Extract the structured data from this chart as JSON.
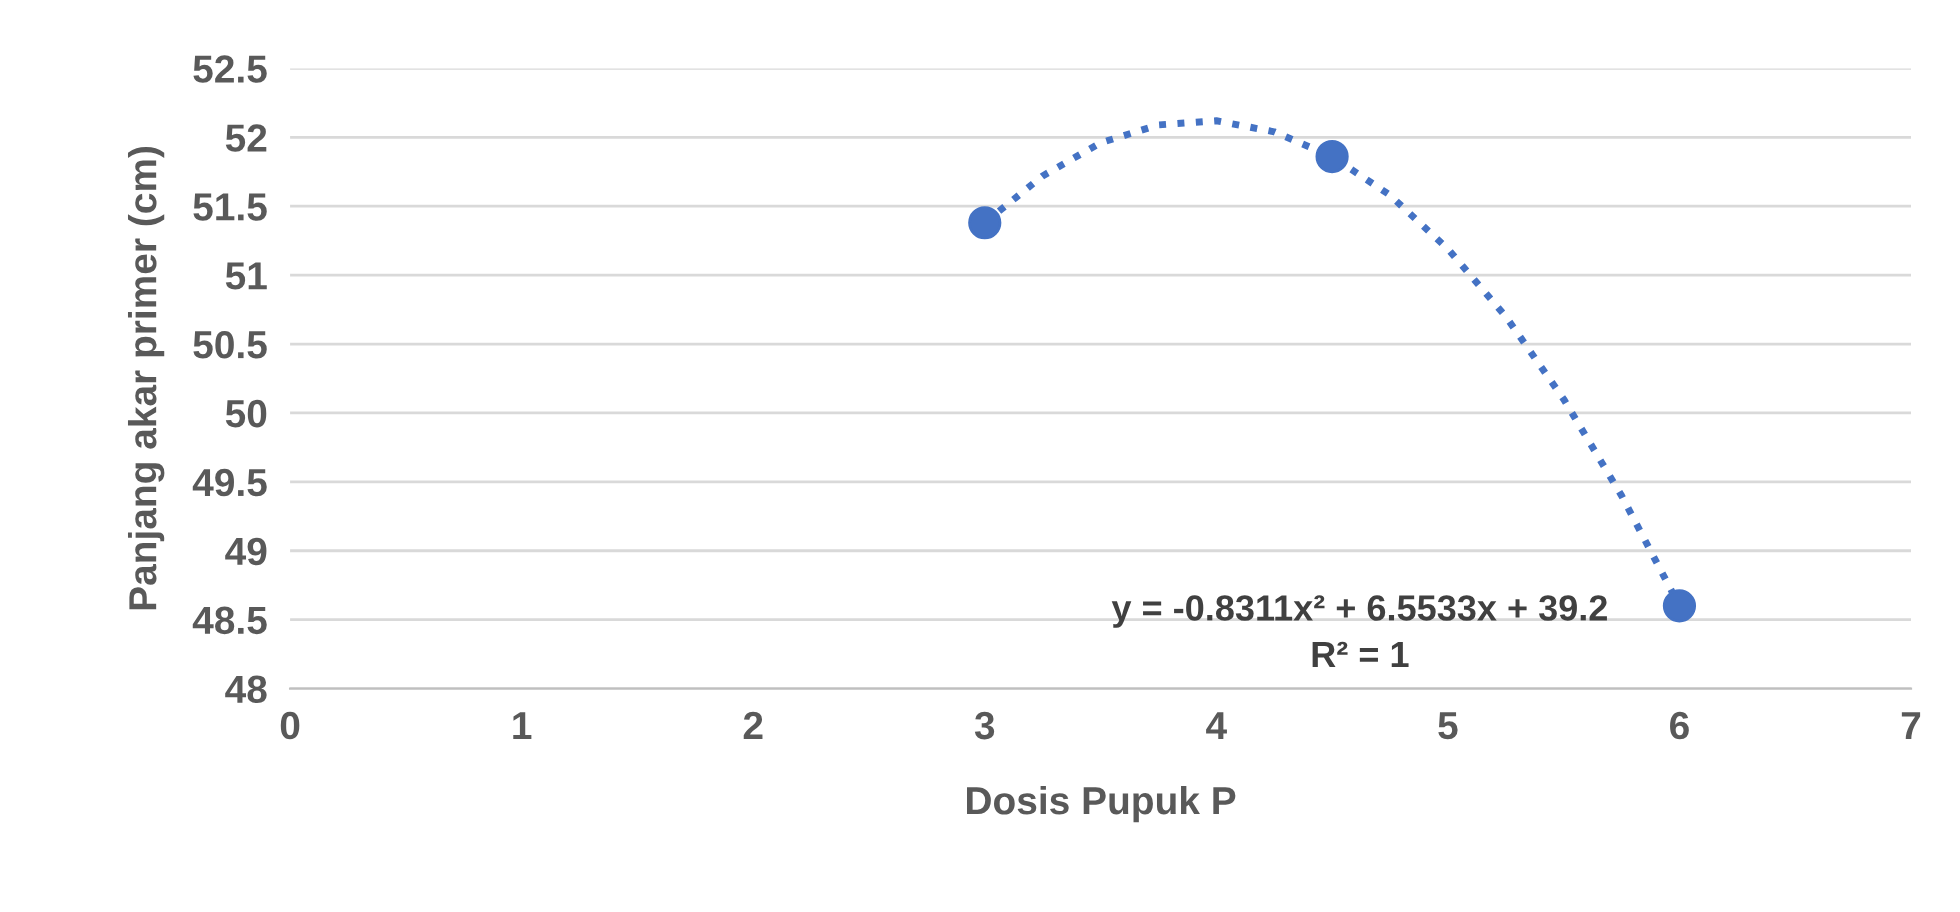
{
  "chart_data": {
    "type": "scatter",
    "xlabel": "Dosis Pupuk P",
    "ylabel": "Panjang akar primer (cm)",
    "xlim": [
      0,
      7
    ],
    "xticks": [
      0,
      1,
      2,
      3,
      4,
      5,
      6,
      7
    ],
    "ylim": [
      48,
      52.5
    ],
    "yticks": [
      48,
      48.5,
      49,
      49.5,
      50,
      50.5,
      51,
      51.5,
      52,
      52.5
    ],
    "grid": "y",
    "marker": "circle",
    "series": [
      {
        "color": "#4472c4",
        "x": [
          3,
          4.5,
          6
        ],
        "values": [
          51.38,
          51.86,
          48.6
        ]
      },
      {
        "type": "line",
        "color": "#4472c4",
        "line_style": "dotted",
        "marker": "none",
        "x": [
          3,
          3.25,
          3.5,
          3.75,
          4,
          4.25,
          4.5,
          4.75,
          5,
          5.25,
          5.5,
          5.75,
          6
        ],
        "values": [
          51.38,
          51.72,
          51.96,
          52.09,
          52.12,
          52.04,
          51.86,
          51.58,
          51.19,
          50.7,
          50.1,
          49.4,
          48.6
        ]
      }
    ],
    "annotations": [
      "y = -0.8311x² + 6.5533x + 39.2",
      "R² = 1"
    ]
  }
}
